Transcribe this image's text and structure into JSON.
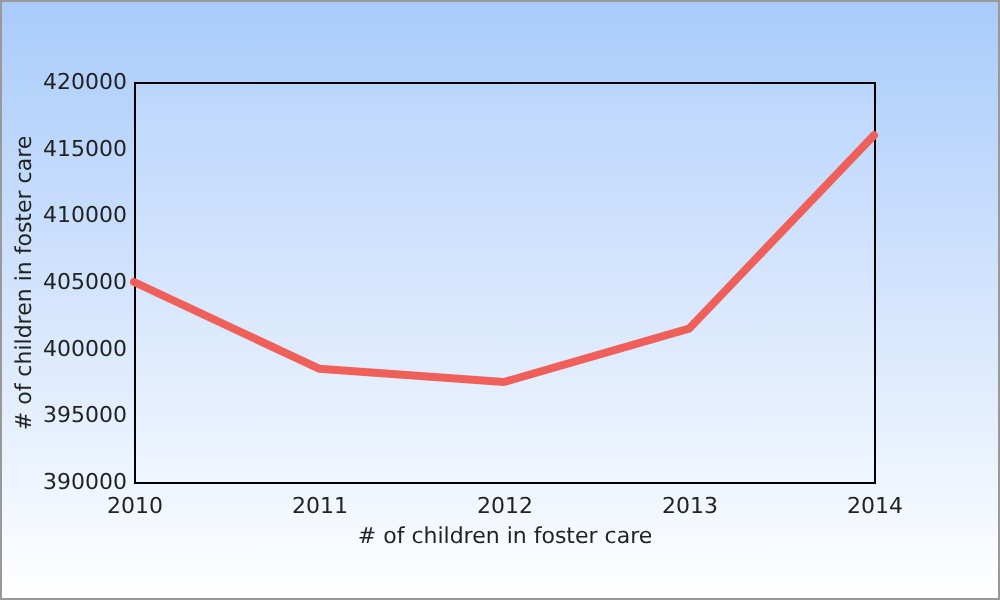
{
  "chart_data": {
    "type": "line",
    "xlabel": "# of children in foster care",
    "ylabel": "# of children in foster care",
    "categories": [
      "2010",
      "2011",
      "2012",
      "2013",
      "2014"
    ],
    "series": [
      {
        "color": "#f0605a",
        "values": [
          405000,
          398500,
          397500,
          401500,
          416000
        ]
      }
    ],
    "ylim": [
      390000,
      420000
    ],
    "yticks": [
      390000,
      395000,
      400000,
      405000,
      410000,
      415000,
      420000
    ],
    "grid": false,
    "legend": false,
    "marker": "none"
  }
}
